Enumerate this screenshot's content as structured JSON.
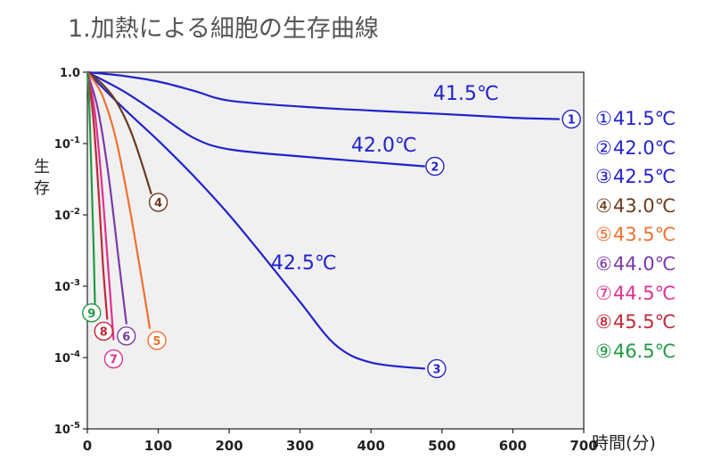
{
  "title": "1.加熱による細胞の生存曲線",
  "chart_data": {
    "type": "line",
    "title": "1.加熱による細胞の生存曲線",
    "xlabel": "時間(分)",
    "ylabel": "生存",
    "xlim": [
      0,
      700
    ],
    "ylim_log10": [
      -5,
      0
    ],
    "x_ticks": [
      "0",
      "100",
      "200",
      "300",
      "400",
      "500",
      "600",
      "700"
    ],
    "y_ticks": [
      {
        "base": "1.0",
        "exp": ""
      },
      {
        "base": "10",
        "exp": "-1"
      },
      {
        "base": "10",
        "exp": "-2"
      },
      {
        "base": "10",
        "exp": "-3"
      },
      {
        "base": "10",
        "exp": "-4"
      },
      {
        "base": "10",
        "exp": "-5"
      }
    ],
    "legend_position": "right",
    "series": [
      {
        "name": "41.5℃",
        "marker": "①",
        "color": "#2222cc",
        "x": [
          0,
          50,
          100,
          150,
          200,
          300,
          400,
          500,
          600,
          665
        ],
        "y": [
          1.0,
          0.89,
          0.74,
          0.55,
          0.4,
          0.33,
          0.29,
          0.26,
          0.23,
          0.22
        ]
      },
      {
        "name": "42.0℃",
        "marker": "②",
        "color": "#2222cc",
        "x": [
          0,
          50,
          100,
          150,
          200,
          300,
          400,
          475
        ],
        "y": [
          1.0,
          0.55,
          0.26,
          0.12,
          0.083,
          0.066,
          0.055,
          0.048
        ]
      },
      {
        "name": "42.5℃",
        "marker": "③",
        "color": "#2222cc",
        "x": [
          0,
          50,
          100,
          150,
          200,
          250,
          300,
          350,
          400,
          475
        ],
        "y": [
          1.0,
          0.32,
          0.11,
          0.035,
          0.01,
          0.0025,
          0.0006,
          0.00015,
          8.5e-05,
          7e-05
        ]
      },
      {
        "name": "43.0℃",
        "marker": "④",
        "color": "#6b3a1e",
        "x": [
          0,
          20,
          40,
          60,
          75,
          90
        ],
        "y": [
          1.0,
          0.7,
          0.4,
          0.16,
          0.06,
          0.02
        ]
      },
      {
        "name": "43.5℃",
        "marker": "⑤",
        "color": "#f07030",
        "x": [
          0,
          20,
          40,
          60,
          80,
          88
        ],
        "y": [
          1.0,
          0.5,
          0.12,
          0.012,
          0.0008,
          0.00026
        ]
      },
      {
        "name": "44.0℃",
        "marker": "⑥",
        "color": "#7a3aa8",
        "x": [
          0,
          15,
          30,
          45,
          55
        ],
        "y": [
          1.0,
          0.3,
          0.035,
          0.002,
          0.0003
        ]
      },
      {
        "name": "44.5℃",
        "marker": "⑦",
        "color": "#e03090",
        "x": [
          0,
          10,
          20,
          30,
          37
        ],
        "y": [
          1.0,
          0.3,
          0.03,
          0.0015,
          0.00018
        ]
      },
      {
        "name": "45.5℃",
        "marker": "⑧",
        "color": "#c02838",
        "x": [
          0,
          8,
          16,
          22,
          28
        ],
        "y": [
          1.0,
          0.25,
          0.02,
          0.002,
          0.00035
        ]
      },
      {
        "name": "46.5℃",
        "marker": "⑨",
        "color": "#229944",
        "x": [
          0,
          3,
          6,
          9,
          11
        ],
        "y": [
          1.0,
          0.3,
          0.03,
          0.003,
          0.0004
        ]
      }
    ],
    "inline_labels": [
      {
        "text": "41.5℃",
        "color": "#2222cc"
      },
      {
        "text": "42.0℃",
        "color": "#2222cc"
      },
      {
        "text": "42.5℃",
        "color": "#2222cc"
      }
    ],
    "grid": false
  }
}
